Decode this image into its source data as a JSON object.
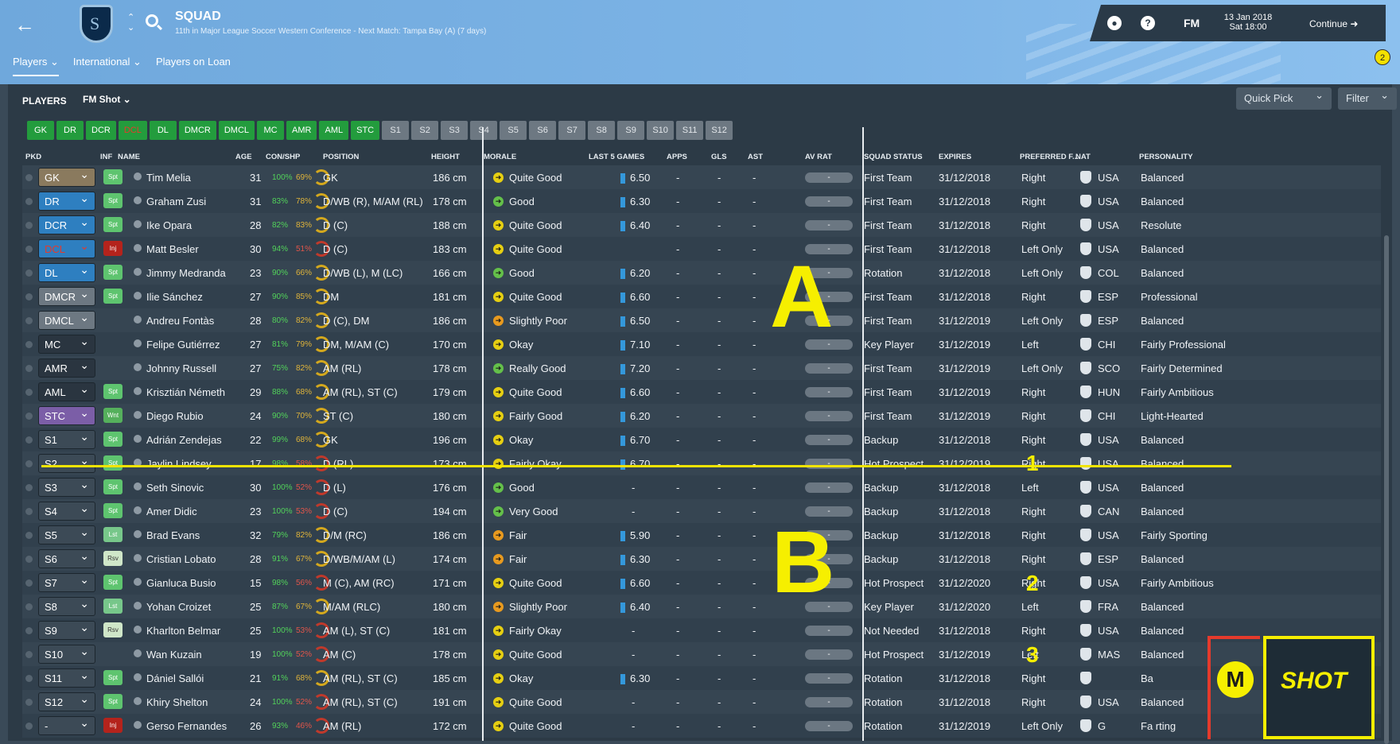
{
  "header": {
    "title": "SQUAD",
    "subtitle": "11th in Major League Soccer Western Conference - Next Match: Tampa Bay (A) (7 days)",
    "nav": [
      "Players",
      "International",
      "Players on Loan"
    ],
    "fm": "FM",
    "date_line1": "13 Jan 2018",
    "date_line2": "Sat 18:00",
    "continue": "Continue",
    "notification_count": "2"
  },
  "panel": {
    "title": "PLAYERS",
    "view": "FM Shot",
    "quick_pick": "Quick Pick",
    "filter": "Filter",
    "position_buttons": [
      "GK",
      "DR",
      "DCR",
      "DCL",
      "DL",
      "DMCR",
      "DMCL",
      "MC",
      "AMR",
      "AML",
      "STC",
      "S1",
      "S2",
      "S3",
      "S4",
      "S5",
      "S6",
      "S7",
      "S8",
      "S9",
      "S10",
      "S11",
      "S12"
    ]
  },
  "columns": {
    "pkd": "PKD",
    "inf": "INF",
    "name": "NAME",
    "age": "AGE",
    "con": "CON/SHP",
    "position": "POSITION",
    "height": "HEIGHT",
    "morale": "MORALE",
    "last5": "LAST 5 GAMES",
    "apps": "APPS",
    "gls": "GLS",
    "ast": "AST",
    "avrat": "AV RAT",
    "status": "SQUAD STATUS",
    "expires": "EXPIRES",
    "foot": "PREFERRED F...",
    "nat": "NAT",
    "personality": "PERSONALITY"
  },
  "players": [
    {
      "pkd": "GK",
      "inf": "Spt",
      "name": "Tim Melia",
      "age": "31",
      "con": "100%",
      "shp": "69%",
      "pos": "GK",
      "height": "186 cm",
      "morale": "Quite Good",
      "last5": "6.50",
      "apps": "-",
      "gls": "-",
      "ast": "-",
      "avrat": "-",
      "status": "First Team",
      "expires": "31/12/2018",
      "foot": "Right",
      "nat": "USA",
      "pers": "Balanced"
    },
    {
      "pkd": "DR",
      "inf": "Spt",
      "name": "Graham Zusi",
      "age": "31",
      "con": "83%",
      "shp": "78%",
      "pos": "D/WB (R), M/AM (RL)",
      "height": "178 cm",
      "morale": "Good",
      "last5": "6.30",
      "apps": "-",
      "gls": "-",
      "ast": "-",
      "avrat": "-",
      "status": "First Team",
      "expires": "31/12/2018",
      "foot": "Right",
      "nat": "USA",
      "pers": "Balanced"
    },
    {
      "pkd": "DCR",
      "inf": "Spt",
      "name": "Ike Opara",
      "age": "28",
      "con": "82%",
      "shp": "83%",
      "pos": "D (C)",
      "height": "188 cm",
      "morale": "Quite Good",
      "last5": "6.40",
      "apps": "-",
      "gls": "-",
      "ast": "-",
      "avrat": "-",
      "status": "First Team",
      "expires": "31/12/2018",
      "foot": "Right",
      "nat": "USA",
      "pers": "Resolute"
    },
    {
      "pkd": "DCL",
      "inf": "Inj",
      "name": "Matt Besler",
      "age": "30",
      "con": "94%",
      "shp": "51%",
      "pos": "D (C)",
      "height": "183 cm",
      "morale": "Quite Good",
      "last5": "",
      "apps": "-",
      "gls": "-",
      "ast": "-",
      "avrat": "-",
      "status": "First Team",
      "expires": "31/12/2018",
      "foot": "Left Only",
      "nat": "USA",
      "pers": "Balanced"
    },
    {
      "pkd": "DL",
      "inf": "Spt",
      "name": "Jimmy Medranda",
      "age": "23",
      "con": "90%",
      "shp": "66%",
      "pos": "D/WB (L), M (LC)",
      "height": "166 cm",
      "morale": "Good",
      "last5": "6.20",
      "apps": "-",
      "gls": "-",
      "ast": "-",
      "avrat": "-",
      "status": "Rotation",
      "expires": "31/12/2018",
      "foot": "Left Only",
      "nat": "COL",
      "pers": "Balanced"
    },
    {
      "pkd": "DMCR",
      "inf": "Spt",
      "name": "Ilie Sánchez",
      "age": "27",
      "con": "90%",
      "shp": "85%",
      "pos": "DM",
      "height": "181 cm",
      "morale": "Quite Good",
      "last5": "6.60",
      "apps": "-",
      "gls": "-",
      "ast": "-",
      "avrat": "-",
      "status": "First Team",
      "expires": "31/12/2018",
      "foot": "Right",
      "nat": "ESP",
      "pers": "Professional"
    },
    {
      "pkd": "DMCL",
      "inf": "",
      "name": "Andreu Fontàs",
      "age": "28",
      "con": "80%",
      "shp": "82%",
      "pos": "D (C), DM",
      "height": "186 cm",
      "morale": "Slightly Poor",
      "last5": "6.50",
      "apps": "-",
      "gls": "-",
      "ast": "-",
      "avrat": "-",
      "status": "First Team",
      "expires": "31/12/2019",
      "foot": "Left Only",
      "nat": "ESP",
      "pers": "Balanced"
    },
    {
      "pkd": "MC",
      "inf": "",
      "name": "Felipe Gutiérrez",
      "age": "27",
      "con": "81%",
      "shp": "79%",
      "pos": "DM, M/AM (C)",
      "height": "170 cm",
      "morale": "Okay",
      "last5": "7.10",
      "apps": "-",
      "gls": "-",
      "ast": "-",
      "avrat": "-",
      "status": "Key Player",
      "expires": "31/12/2019",
      "foot": "Left",
      "nat": "CHI",
      "pers": "Fairly Professional"
    },
    {
      "pkd": "AMR",
      "inf": "",
      "name": "Johnny Russell",
      "age": "27",
      "con": "75%",
      "shp": "82%",
      "pos": "AM (RL)",
      "height": "178 cm",
      "morale": "Really Good",
      "last5": "7.20",
      "apps": "-",
      "gls": "-",
      "ast": "-",
      "avrat": "-",
      "status": "First Team",
      "expires": "31/12/2019",
      "foot": "Left Only",
      "nat": "SCO",
      "pers": "Fairly Determined"
    },
    {
      "pkd": "AML",
      "inf": "Spt",
      "name": "Krisztián Németh",
      "age": "29",
      "con": "88%",
      "shp": "68%",
      "pos": "AM (RL), ST (C)",
      "height": "179 cm",
      "morale": "Quite Good",
      "last5": "6.60",
      "apps": "-",
      "gls": "-",
      "ast": "-",
      "avrat": "-",
      "status": "First Team",
      "expires": "31/12/2019",
      "foot": "Right",
      "nat": "HUN",
      "pers": "Fairly Ambitious"
    },
    {
      "pkd": "STC",
      "inf": "Wnt",
      "name": "Diego Rubio",
      "age": "24",
      "con": "90%",
      "shp": "70%",
      "pos": "ST (C)",
      "height": "180 cm",
      "morale": "Fairly Good",
      "last5": "6.20",
      "apps": "-",
      "gls": "-",
      "ast": "-",
      "avrat": "-",
      "status": "First Team",
      "expires": "31/12/2019",
      "foot": "Right",
      "nat": "CHI",
      "pers": "Light-Hearted"
    },
    {
      "pkd": "S1",
      "inf": "Spt",
      "name": "Adrián Zendejas",
      "age": "22",
      "con": "99%",
      "shp": "68%",
      "pos": "GK",
      "height": "196 cm",
      "morale": "Okay",
      "last5": "6.70",
      "apps": "-",
      "gls": "-",
      "ast": "-",
      "avrat": "-",
      "status": "Backup",
      "expires": "31/12/2018",
      "foot": "Right",
      "nat": "USA",
      "pers": "Balanced"
    },
    {
      "pkd": "S2",
      "inf": "Spt",
      "name": "Jaylin Lindsey",
      "age": "17",
      "con": "98%",
      "shp": "58%",
      "pos": "D (RL)",
      "height": "173 cm",
      "morale": "Fairly Okay",
      "last5": "6.70",
      "apps": "-",
      "gls": "-",
      "ast": "-",
      "avrat": "-",
      "status": "Hot Prospect",
      "expires": "31/12/2019",
      "foot": "Right",
      "nat": "USA",
      "pers": "Balanced"
    },
    {
      "pkd": "S3",
      "inf": "Spt",
      "name": "Seth Sinovic",
      "age": "30",
      "con": "100%",
      "shp": "52%",
      "pos": "D (L)",
      "height": "176 cm",
      "morale": "Good",
      "last5": "-",
      "apps": "-",
      "gls": "-",
      "ast": "-",
      "avrat": "-",
      "status": "Backup",
      "expires": "31/12/2018",
      "foot": "Left",
      "nat": "USA",
      "pers": "Balanced"
    },
    {
      "pkd": "S4",
      "inf": "Spt",
      "name": "Amer Didic",
      "age": "23",
      "con": "100%",
      "shp": "53%",
      "pos": "D (C)",
      "height": "194 cm",
      "morale": "Very Good",
      "last5": "-",
      "apps": "-",
      "gls": "-",
      "ast": "-",
      "avrat": "-",
      "status": "Backup",
      "expires": "31/12/2018",
      "foot": "Right",
      "nat": "CAN",
      "pers": "Balanced"
    },
    {
      "pkd": "S5",
      "inf": "Lst",
      "name": "Brad Evans",
      "age": "32",
      "con": "79%",
      "shp": "82%",
      "pos": "D/M (RC)",
      "height": "186 cm",
      "morale": "Fair",
      "last5": "5.90",
      "apps": "-",
      "gls": "-",
      "ast": "-",
      "avrat": "-",
      "status": "Backup",
      "expires": "31/12/2018",
      "foot": "Right",
      "nat": "USA",
      "pers": "Fairly Sporting"
    },
    {
      "pkd": "S6",
      "inf": "Rsv",
      "name": "Cristian Lobato",
      "age": "28",
      "con": "91%",
      "shp": "67%",
      "pos": "D/WB/M/AM (L)",
      "height": "174 cm",
      "morale": "Fair",
      "last5": "6.30",
      "apps": "-",
      "gls": "-",
      "ast": "-",
      "avrat": "-",
      "status": "Backup",
      "expires": "31/12/2018",
      "foot": "Right",
      "nat": "ESP",
      "pers": "Balanced"
    },
    {
      "pkd": "S7",
      "inf": "Spt",
      "name": "Gianluca Busio",
      "age": "15",
      "con": "98%",
      "shp": "56%",
      "pos": "M (C), AM (RC)",
      "height": "171 cm",
      "morale": "Quite Good",
      "last5": "6.60",
      "apps": "-",
      "gls": "-",
      "ast": "-",
      "avrat": "-",
      "status": "Hot Prospect",
      "expires": "31/12/2020",
      "foot": "Right",
      "nat": "USA",
      "pers": "Fairly Ambitious"
    },
    {
      "pkd": "S8",
      "inf": "Lst",
      "name": "Yohan Croizet",
      "age": "25",
      "con": "87%",
      "shp": "67%",
      "pos": "M/AM (RLC)",
      "height": "180 cm",
      "morale": "Slightly Poor",
      "last5": "6.40",
      "apps": "-",
      "gls": "-",
      "ast": "-",
      "avrat": "-",
      "status": "Key Player",
      "expires": "31/12/2020",
      "foot": "Left",
      "nat": "FRA",
      "pers": "Balanced"
    },
    {
      "pkd": "S9",
      "inf": "Rsv",
      "name": "Kharlton Belmar",
      "age": "25",
      "con": "100%",
      "shp": "53%",
      "pos": "AM (L), ST (C)",
      "height": "181 cm",
      "morale": "Fairly Okay",
      "last5": "-",
      "apps": "-",
      "gls": "-",
      "ast": "-",
      "avrat": "-",
      "status": "Not Needed",
      "expires": "31/12/2018",
      "foot": "Right",
      "nat": "USA",
      "pers": "Balanced"
    },
    {
      "pkd": "S10",
      "inf": "",
      "name": "Wan Kuzain",
      "age": "19",
      "con": "100%",
      "shp": "52%",
      "pos": "AM (C)",
      "height": "178 cm",
      "morale": "Quite Good",
      "last5": "-",
      "apps": "-",
      "gls": "-",
      "ast": "-",
      "avrat": "-",
      "status": "Hot Prospect",
      "expires": "31/12/2019",
      "foot": "Left",
      "nat": "MAS",
      "pers": "Balanced"
    },
    {
      "pkd": "S11",
      "inf": "Spt",
      "name": "Dániel Sallói",
      "age": "21",
      "con": "91%",
      "shp": "68%",
      "pos": "AM (RL), ST (C)",
      "height": "185 cm",
      "morale": "Okay",
      "last5": "6.30",
      "apps": "-",
      "gls": "-",
      "ast": "-",
      "avrat": "-",
      "status": "Rotation",
      "expires": "31/12/2018",
      "foot": "Right",
      "nat": "",
      "pers": "Ba"
    },
    {
      "pkd": "S12",
      "inf": "Spt",
      "name": "Khiry Shelton",
      "age": "24",
      "con": "100%",
      "shp": "52%",
      "pos": "AM (RL), ST (C)",
      "height": "191 cm",
      "morale": "Quite Good",
      "last5": "-",
      "apps": "-",
      "gls": "-",
      "ast": "-",
      "avrat": "-",
      "status": "Rotation",
      "expires": "31/12/2018",
      "foot": "Right",
      "nat": "USA",
      "pers": "Balanced"
    },
    {
      "pkd": "-",
      "inf": "Inj",
      "name": "Gerso Fernandes",
      "age": "26",
      "con": "93%",
      "shp": "46%",
      "pos": "AM (RL)",
      "height": "172 cm",
      "morale": "Quite Good",
      "last5": "-",
      "apps": "-",
      "gls": "-",
      "ast": "-",
      "avrat": "-",
      "status": "Rotation",
      "expires": "31/12/2019",
      "foot": "Left Only",
      "nat": "G",
      "pers": "Fa        rting"
    }
  ],
  "overlay": {
    "a": "A",
    "b": "B",
    "n1": "1",
    "n2": "2",
    "n3": "3",
    "logo_m": "M",
    "logo_shot": "SHOT"
  },
  "colors": {
    "accent_green": "#239c3d",
    "highlight_yellow": "#f2e400"
  }
}
